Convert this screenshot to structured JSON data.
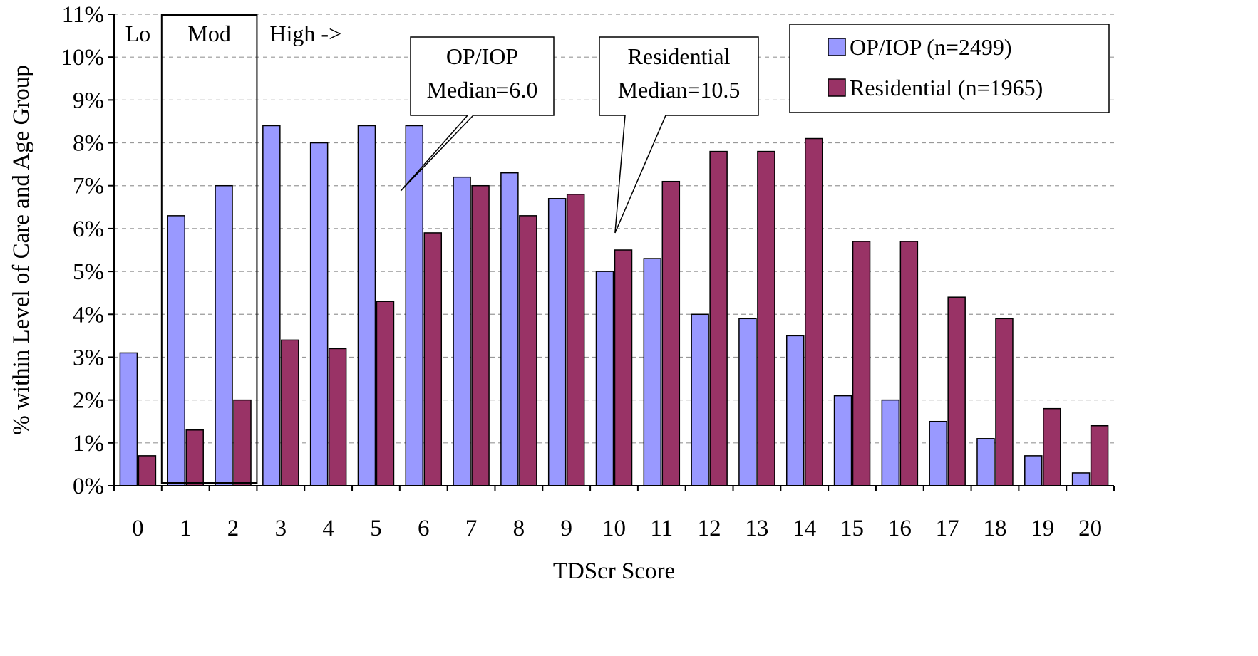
{
  "chart_data": {
    "type": "bar",
    "xlabel": "TDScr Score",
    "ylabel": "% within Level of Care and Age Group",
    "categories": [
      "0",
      "1",
      "2",
      "3",
      "4",
      "5",
      "6",
      "7",
      "8",
      "9",
      "10",
      "11",
      "12",
      "13",
      "14",
      "15",
      "16",
      "17",
      "18",
      "19",
      "20"
    ],
    "series": [
      {
        "name": "OP/IOP (n=2499)",
        "color": "#9999FF",
        "values": [
          3.1,
          6.3,
          7.0,
          8.4,
          8.0,
          8.4,
          8.4,
          7.2,
          7.3,
          6.7,
          5.0,
          5.3,
          4.0,
          3.9,
          3.5,
          2.1,
          2.0,
          1.5,
          1.1,
          0.7,
          0.3
        ]
      },
      {
        "name": "Residential (n=1965)",
        "color": "#993366",
        "values": [
          0.7,
          1.3,
          2.0,
          3.4,
          3.2,
          4.3,
          5.9,
          7.0,
          6.3,
          6.8,
          5.5,
          7.1,
          7.8,
          7.8,
          8.1,
          5.7,
          5.7,
          4.4,
          3.9,
          1.8,
          1.4
        ]
      }
    ],
    "yticks": [
      "0%",
      "1%",
      "2%",
      "3%",
      "4%",
      "5%",
      "6%",
      "7%",
      "8%",
      "9%",
      "10%",
      "11%"
    ],
    "ylim": [
      0,
      11
    ],
    "grid": "horizontal dashed",
    "legend_position": "top-right",
    "regions": [
      {
        "label": "Lo",
        "from": 0,
        "to": 0
      },
      {
        "label": "Mod",
        "from": 1,
        "to": 2
      },
      {
        "label": "High ->",
        "from": 3,
        "to": 20
      }
    ],
    "annotations": [
      {
        "lines": [
          "OP/IOP",
          "Median=6.0"
        ],
        "x": 6.0
      },
      {
        "lines": [
          "Residential",
          "Median=10.5"
        ],
        "x": 10.5
      }
    ]
  }
}
